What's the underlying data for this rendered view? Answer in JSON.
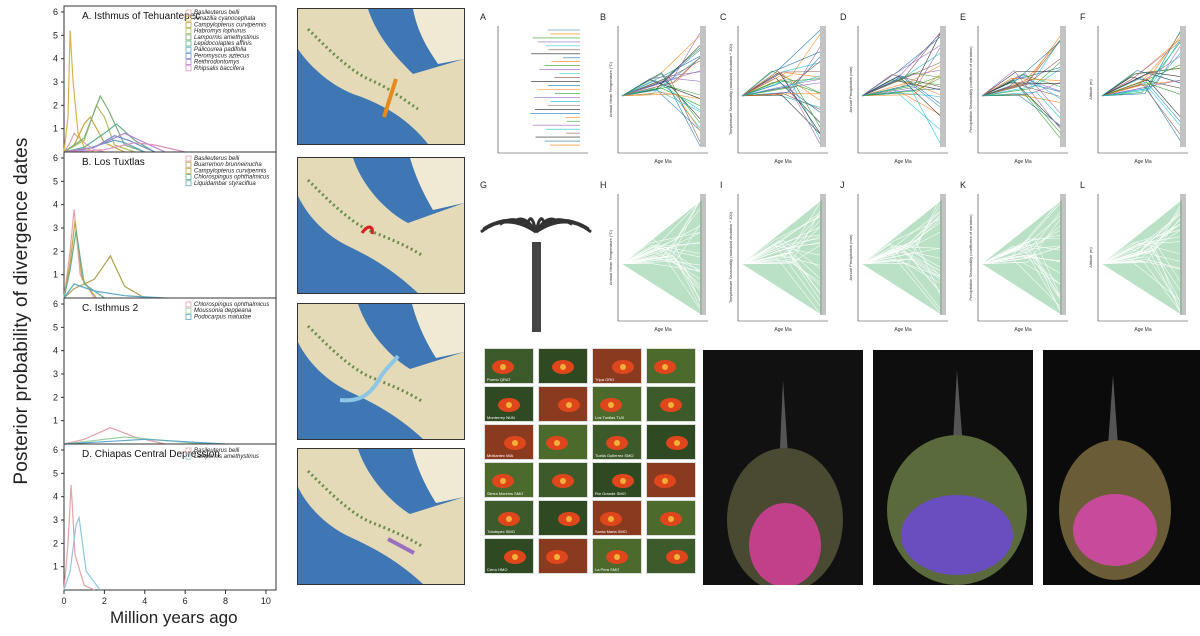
{
  "figure": {
    "y_axis_label": "Posterior probability of divergence dates",
    "x_axis_label": "Million years ago",
    "x_ticks": [
      "0",
      "2",
      "4",
      "6",
      "8",
      "10"
    ],
    "y_ticks": [
      "1",
      "2",
      "3",
      "4",
      "5",
      "6"
    ],
    "panel_letters": [
      "A",
      "B",
      "C",
      "D",
      "E",
      "F",
      "G",
      "H",
      "I",
      "J",
      "K",
      "L"
    ],
    "panel_axis_titles": {
      "B": "Annual Mean Temperature (°C)",
      "C": "Temperature Seasonality (standard deviation * 100)",
      "D": "Annual Precipitation (mm)",
      "E": "Precipitation Seasonality (coefficient of variation)",
      "F": "Altitude (m)",
      "H": "Annual Mean Temperature (°C)",
      "I": "Temperature Seasonality (standard deviation * 100)",
      "J": "Annual Precipitation (mm)",
      "K": "Precipitation Seasonality (coefficient of variation)",
      "L": "Altitude (m)"
    },
    "panel_x_label": "Age Ma"
  },
  "colors": {
    "ocean": "#3f77b4",
    "land": "#e9dfc2",
    "route_a": "#e68a1e",
    "route_b": "#d42020",
    "route_c": "#8ec6e6",
    "route_d": "#9a6fc0",
    "trait_green": "#3aa65a"
  },
  "chart_data": [
    {
      "type": "line",
      "title": "A. Isthmus of Tehuantepec",
      "xlim": [
        0,
        10.5
      ],
      "ylim": [
        0,
        6
      ],
      "series": [
        {
          "name": "Basileuterus belli",
          "color": "#e8a0a8",
          "x": [
            0,
            0.3,
            0.5,
            1,
            1.5,
            2
          ],
          "y": [
            0,
            0.4,
            0.8,
            0.4,
            0.1,
            0
          ]
        },
        {
          "name": "Amazilia cyanocephala",
          "color": "#d9b24a",
          "x": [
            0,
            0.2,
            0.3,
            0.45,
            0.7,
            1,
            1.5
          ],
          "y": [
            0,
            1.5,
            5.2,
            3.0,
            0.8,
            0.2,
            0
          ]
        },
        {
          "name": "Campylopterus curvipennis",
          "color": "#c7a43e",
          "x": [
            0,
            0.5,
            1,
            1.3,
            2,
            3
          ],
          "y": [
            0,
            0.3,
            1.2,
            1.5,
            0.4,
            0
          ]
        },
        {
          "name": "Habromys lophurus",
          "color": "#b0c060",
          "x": [
            0,
            1,
            1.6,
            2,
            2.5,
            3.5
          ],
          "y": [
            0,
            0.5,
            2.0,
            1.5,
            0.3,
            0
          ]
        },
        {
          "name": "Lampornis amethystinus",
          "color": "#7ab07a",
          "x": [
            0,
            1,
            1.8,
            2.2,
            3,
            4
          ],
          "y": [
            0,
            0.6,
            2.4,
            1.8,
            0.3,
            0
          ]
        },
        {
          "name": "Lepidocolaptes affinis",
          "color": "#60b090",
          "x": [
            0,
            1,
            2,
            2.6,
            3.5,
            4.5
          ],
          "y": [
            0,
            0.2,
            0.8,
            1.2,
            0.5,
            0
          ]
        },
        {
          "name": "Palicourea padifolia",
          "color": "#5fa8c8",
          "x": [
            0,
            1,
            2.5,
            3,
            4
          ],
          "y": [
            0,
            0.1,
            0.5,
            0.4,
            0
          ]
        },
        {
          "name": "Peromyscus aztecus",
          "color": "#7090d0",
          "x": [
            0,
            1.5,
            2.5,
            3.2,
            4.5
          ],
          "y": [
            0,
            0.2,
            0.7,
            0.5,
            0
          ]
        },
        {
          "name": "Reithrodontomys",
          "color": "#b080d0",
          "x": [
            0,
            1.5,
            3,
            3.5,
            5
          ],
          "y": [
            0,
            0.2,
            0.8,
            0.6,
            0
          ]
        },
        {
          "name": "Rhipsalis baccifera",
          "color": "#e090c0",
          "x": [
            0,
            2,
            3.5,
            4.5,
            6
          ],
          "y": [
            0,
            0.1,
            0.4,
            0.3,
            0
          ]
        }
      ]
    },
    {
      "type": "line",
      "title": "B. Los Tuxtlas",
      "xlim": [
        0,
        10.5
      ],
      "ylim": [
        0,
        6
      ],
      "series": [
        {
          "name": "Basileuterus belli",
          "color": "#e8a0a8",
          "x": [
            0,
            0.3,
            0.5,
            0.8,
            1.5
          ],
          "y": [
            0,
            2.0,
            3.8,
            1.0,
            0
          ]
        },
        {
          "name": "Buarremon brunneinucha",
          "color": "#b0a050",
          "x": [
            0,
            0.5,
            1.5,
            2.3,
            3,
            4
          ],
          "y": [
            0,
            0.4,
            0.8,
            1.8,
            0.5,
            0
          ]
        },
        {
          "name": "Campylopterus curvipennis",
          "color": "#c7a43e",
          "x": [
            0,
            0.3,
            0.55,
            0.9,
            1.6
          ],
          "y": [
            0,
            1.5,
            3.3,
            0.8,
            0
          ]
        },
        {
          "name": "Chlorospingus ophthalmicus",
          "color": "#60b090",
          "x": [
            0,
            0.3,
            0.6,
            1,
            2
          ],
          "y": [
            0,
            1.2,
            2.9,
            0.6,
            0
          ]
        },
        {
          "name": "Liquidambar styraciflua",
          "color": "#5fa8c8",
          "x": [
            0,
            0.5,
            1.5,
            3,
            5
          ],
          "y": [
            0,
            0.6,
            0.3,
            0.1,
            0
          ]
        }
      ]
    },
    {
      "type": "line",
      "title": "C. Isthmus 2",
      "xlim": [
        0,
        10.5
      ],
      "ylim": [
        0,
        6
      ],
      "series": [
        {
          "name": "Chlorospingus ophthalmicus",
          "color": "#e8a0a8",
          "x": [
            0,
            1,
            2.3,
            3.5,
            5
          ],
          "y": [
            0,
            0.2,
            0.7,
            0.3,
            0
          ]
        },
        {
          "name": "Moussonia deppeana",
          "color": "#9ad0a0",
          "x": [
            0,
            1,
            3,
            5,
            7
          ],
          "y": [
            0,
            0.1,
            0.3,
            0.15,
            0
          ]
        },
        {
          "name": "Podocarpus matudae",
          "color": "#5fa8c8",
          "x": [
            0,
            2,
            4,
            6,
            8
          ],
          "y": [
            0,
            0.1,
            0.2,
            0.1,
            0
          ]
        }
      ]
    },
    {
      "type": "line",
      "title": "D. Chiapas Central Depression",
      "xlim": [
        0,
        10.5
      ],
      "ylim": [
        0,
        6
      ],
      "series": [
        {
          "name": "Basileuterus belli",
          "color": "#e8a0a8",
          "x": [
            0,
            0.2,
            0.35,
            0.55,
            1,
            1.5
          ],
          "y": [
            0,
            2.0,
            4.5,
            1.5,
            0.2,
            0
          ]
        },
        {
          "name": "Lampornis amethystinus",
          "color": "#8cc6de",
          "x": [
            0,
            0.3,
            0.6,
            0.75,
            1.1,
            1.8
          ],
          "y": [
            0,
            0.8,
            2.8,
            3.1,
            0.8,
            0
          ]
        }
      ]
    }
  ],
  "flower_thumbnails": [
    {
      "label": "Puerto  QRAT"
    },
    {
      "label": ""
    },
    {
      "label": "Tripa  GRO"
    },
    {
      "label": ""
    },
    {
      "label": "Monterrey  NUN"
    },
    {
      "label": ""
    },
    {
      "label": "Los Tuxtlas  TUX"
    },
    {
      "label": ""
    },
    {
      "label": "Mixtlantec  MIA"
    },
    {
      "label": ""
    },
    {
      "label": "Tuxtla Gutierrez  SMO"
    },
    {
      "label": ""
    },
    {
      "label": "Sierra Morelos  SMO"
    },
    {
      "label": ""
    },
    {
      "label": "Rio Grande  SMO"
    },
    {
      "label": ""
    },
    {
      "label": "Tututepec  SMO"
    },
    {
      "label": ""
    },
    {
      "label": "Santa Maria  SMO"
    },
    {
      "label": ""
    },
    {
      "label": "Cerro  HMO"
    },
    {
      "label": ""
    },
    {
      "label": "La Pera  SMO"
    },
    {
      "label": ""
    }
  ]
}
